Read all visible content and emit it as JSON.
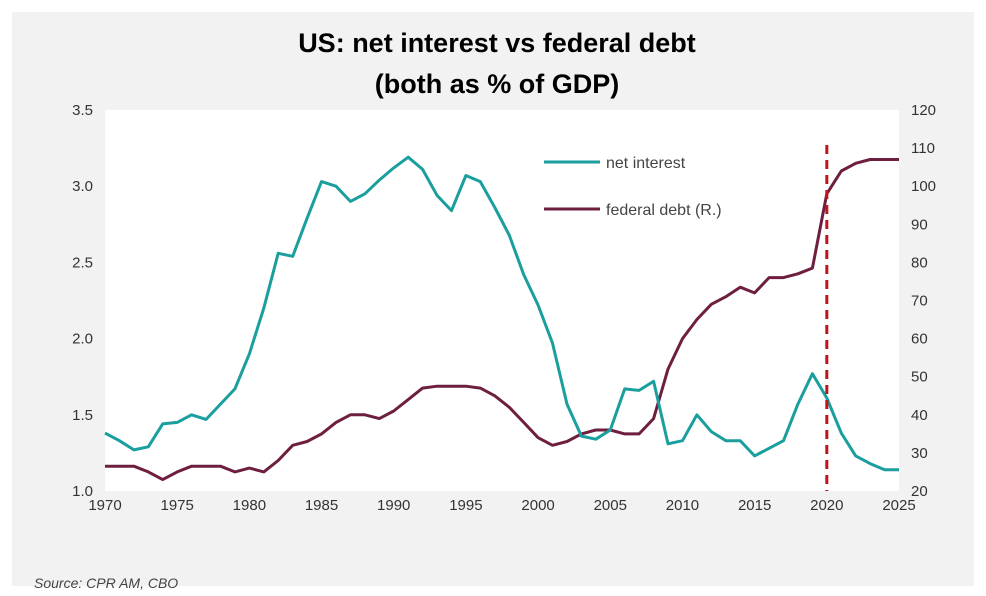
{
  "colors": {
    "net_interest": "#1a9e9e",
    "federal_debt": "#6e1f3f",
    "marker": "#c0141a",
    "plot_bg": "#ffffff",
    "frame_bg": "#f2f2f2"
  },
  "chart_data": {
    "type": "line",
    "title": [
      "US: net interest vs federal debt",
      "(both as % of GDP)"
    ],
    "xlabel": "",
    "ylabel": "",
    "x": [
      1970,
      1971,
      1972,
      1973,
      1974,
      1975,
      1976,
      1977,
      1978,
      1979,
      1980,
      1981,
      1982,
      1983,
      1984,
      1985,
      1986,
      1987,
      1988,
      1989,
      1990,
      1991,
      1992,
      1993,
      1994,
      1995,
      1996,
      1997,
      1998,
      1999,
      2000,
      2001,
      2002,
      2003,
      2004,
      2005,
      2006,
      2007,
      2008,
      2009,
      2010,
      2011,
      2012,
      2013,
      2014,
      2015,
      2016,
      2017,
      2018,
      2019,
      2020,
      2021,
      2022,
      2023,
      2024,
      2025
    ],
    "xlim": [
      1970,
      2025
    ],
    "x_ticks": [
      "1970",
      "1975",
      "1980",
      "1985",
      "1990",
      "1995",
      "2000",
      "2005",
      "2010",
      "2015",
      "2020",
      "2025"
    ],
    "y_left": {
      "lim": [
        1.0,
        3.5
      ],
      "ticks": [
        "1.0",
        "1.5",
        "2.0",
        "2.5",
        "3.0",
        "3.5"
      ]
    },
    "y_right": {
      "lim": [
        20,
        120
      ],
      "ticks": [
        "20",
        "30",
        "40",
        "50",
        "60",
        "70",
        "80",
        "90",
        "100",
        "110",
        "120"
      ]
    },
    "series": [
      {
        "name": "net interest",
        "axis": "left",
        "values": [
          1.38,
          1.33,
          1.27,
          1.29,
          1.44,
          1.45,
          1.5,
          1.47,
          1.57,
          1.67,
          1.9,
          2.2,
          2.56,
          2.54,
          2.79,
          3.03,
          3.0,
          2.9,
          2.95,
          3.04,
          3.12,
          3.19,
          3.11,
          2.94,
          2.84,
          3.07,
          3.03,
          2.86,
          2.68,
          2.42,
          2.22,
          1.97,
          1.57,
          1.36,
          1.34,
          1.4,
          1.67,
          1.66,
          1.72,
          1.31,
          1.33,
          1.5,
          1.39,
          1.33,
          1.33,
          1.23,
          1.28,
          1.33,
          1.57,
          1.77,
          1.61,
          1.38,
          1.23,
          1.18,
          1.14,
          1.14
        ]
      },
      {
        "name": "federal debt (R.)",
        "axis": "right",
        "values": [
          26.5,
          26.5,
          26.5,
          25.0,
          23.0,
          25.0,
          26.5,
          26.5,
          26.5,
          25.0,
          26.0,
          25.0,
          28.0,
          32.0,
          33.0,
          35.0,
          38.0,
          40.0,
          40.0,
          39.0,
          41.0,
          44.0,
          47.0,
          47.5,
          47.5,
          47.5,
          47.0,
          45.0,
          42.0,
          38.0,
          34.0,
          32.0,
          33.0,
          35.0,
          36.0,
          36.0,
          35.0,
          35.0,
          39.0,
          52.0,
          60.0,
          65.0,
          69.0,
          71.0,
          73.5,
          72.0,
          76.0,
          76.0,
          77.0,
          78.5,
          98.0,
          104.0,
          106.0,
          107.0,
          107.0,
          107.0
        ]
      }
    ],
    "vertical_marker": {
      "x": 2020,
      "style": "dashed"
    },
    "legend_position": "top-center-right"
  },
  "source": "Source: CPR AM, CBO"
}
